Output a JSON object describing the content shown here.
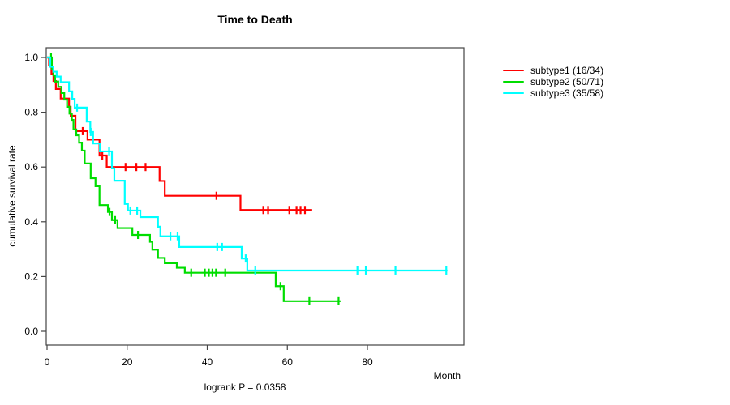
{
  "chart_data": {
    "type": "line",
    "subtype": "kaplan-meier-step-curves",
    "title": "Time to Death",
    "xlabel": "Month",
    "ylabel": "cumulative survival rate",
    "footnote": "logrank P = 0.0358",
    "xticks": [
      0,
      20,
      40,
      60,
      80
    ],
    "yticks": [
      0.0,
      0.2,
      0.4,
      0.6,
      0.8,
      1.0
    ],
    "xlim": [
      0,
      104
    ],
    "ylim": [
      0.0,
      1.0
    ],
    "grid": false,
    "legend_position": "right-outside-top",
    "series": [
      {
        "name": "subtype1 (16/34)",
        "color": "#ff0000",
        "steps": [
          [
            0,
            1.0
          ],
          [
            0.5,
            0.971
          ],
          [
            1.1,
            0.941
          ],
          [
            1.6,
            0.914
          ],
          [
            2.2,
            0.885
          ],
          [
            3.4,
            0.85
          ],
          [
            5.5,
            0.82
          ],
          [
            5.9,
            0.787
          ],
          [
            7.1,
            0.731
          ],
          [
            10.1,
            0.7
          ],
          [
            13.1,
            0.642
          ],
          [
            14.9,
            0.6
          ],
          [
            28.1,
            0.549
          ],
          [
            29.4,
            0.495
          ],
          [
            48.3,
            0.443
          ]
        ],
        "censors": [
          8.9,
          13.8,
          19.6,
          22.3,
          24.6,
          42.3,
          54.0,
          55.2,
          60.5,
          62.3,
          63.3,
          64.4
        ],
        "end_time": 66.2
      },
      {
        "name": "subtype2 (50/71)",
        "color": "#00dd00",
        "steps": [
          [
            0,
            1.0
          ],
          [
            1.2,
            0.957
          ],
          [
            1.6,
            0.935
          ],
          [
            2.0,
            0.912
          ],
          [
            2.8,
            0.893
          ],
          [
            3.6,
            0.87
          ],
          [
            4.3,
            0.846
          ],
          [
            5.0,
            0.82
          ],
          [
            5.6,
            0.795
          ],
          [
            6.2,
            0.772
          ],
          [
            6.6,
            0.737
          ],
          [
            7.3,
            0.716
          ],
          [
            8.0,
            0.689
          ],
          [
            8.7,
            0.66
          ],
          [
            9.4,
            0.613
          ],
          [
            10.9,
            0.559
          ],
          [
            12.1,
            0.53
          ],
          [
            13.1,
            0.461
          ],
          [
            15.2,
            0.436
          ],
          [
            16.2,
            0.406
          ],
          [
            17.6,
            0.377
          ],
          [
            21.3,
            0.352
          ],
          [
            25.7,
            0.327
          ],
          [
            26.3,
            0.298
          ],
          [
            27.7,
            0.268
          ],
          [
            29.4,
            0.249
          ],
          [
            32.4,
            0.232
          ],
          [
            34.4,
            0.214
          ],
          [
            57.1,
            0.165
          ],
          [
            59.1,
            0.11
          ]
        ],
        "censors": [
          1.0,
          15.6,
          17.0,
          22.7,
          36.0,
          39.4,
          40.4,
          41.3,
          42.2,
          44.5,
          58.3,
          65.5,
          72.8
        ],
        "end_time": 73.3
      },
      {
        "name": "subtype3 (35/58)",
        "color": "#00ffff",
        "steps": [
          [
            0,
            1.0
          ],
          [
            0.8,
            0.966
          ],
          [
            1.6,
            0.948
          ],
          [
            2.4,
            0.93
          ],
          [
            3.4,
            0.91
          ],
          [
            5.5,
            0.876
          ],
          [
            6.3,
            0.849
          ],
          [
            6.9,
            0.817
          ],
          [
            9.9,
            0.766
          ],
          [
            10.8,
            0.728
          ],
          [
            11.5,
            0.686
          ],
          [
            13.2,
            0.657
          ],
          [
            16.2,
            0.595
          ],
          [
            16.8,
            0.55
          ],
          [
            19.4,
            0.465
          ],
          [
            20.2,
            0.441
          ],
          [
            23.3,
            0.417
          ],
          [
            27.7,
            0.382
          ],
          [
            28.3,
            0.347
          ],
          [
            33.0,
            0.308
          ],
          [
            48.6,
            0.266
          ],
          [
            50.0,
            0.222
          ]
        ],
        "censors": [
          7.5,
          10.9,
          15.5,
          20.8,
          22.5,
          30.8,
          32.6,
          42.5,
          43.7,
          49.6,
          52.0,
          77.5,
          79.6,
          87.0,
          99.7
        ],
        "end_time": 100.0
      }
    ]
  }
}
